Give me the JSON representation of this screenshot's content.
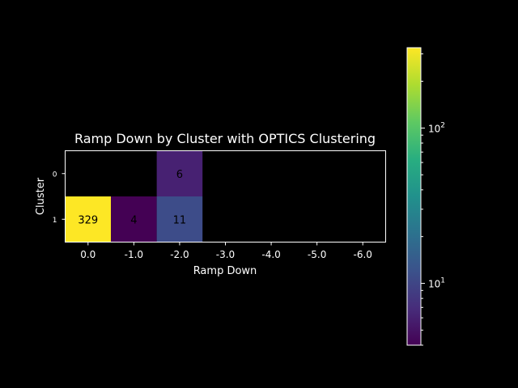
{
  "chart_data": {
    "type": "heatmap",
    "title": "Ramp Down by Cluster with OPTICS Clustering",
    "xlabel": "Ramp Down",
    "ylabel": "Cluster",
    "x_categories": [
      "0.0",
      "-1.0",
      "-2.0",
      "-3.0",
      "-4.0",
      "-5.0",
      "-6.0"
    ],
    "y_categories": [
      "0",
      "1"
    ],
    "values": [
      [
        null,
        null,
        6,
        null,
        null,
        null,
        null
      ],
      [
        329,
        4,
        11,
        null,
        null,
        null,
        null
      ]
    ],
    "colorbar": {
      "scale": "log",
      "colormap": "viridis",
      "min": 4,
      "max": 329,
      "tick_labels": [
        {
          "value": 10,
          "base": "10",
          "exp": "1"
        },
        {
          "value": 100,
          "base": "10",
          "exp": "2"
        }
      ]
    },
    "background": "#000000",
    "text_color": "#ffffff"
  }
}
